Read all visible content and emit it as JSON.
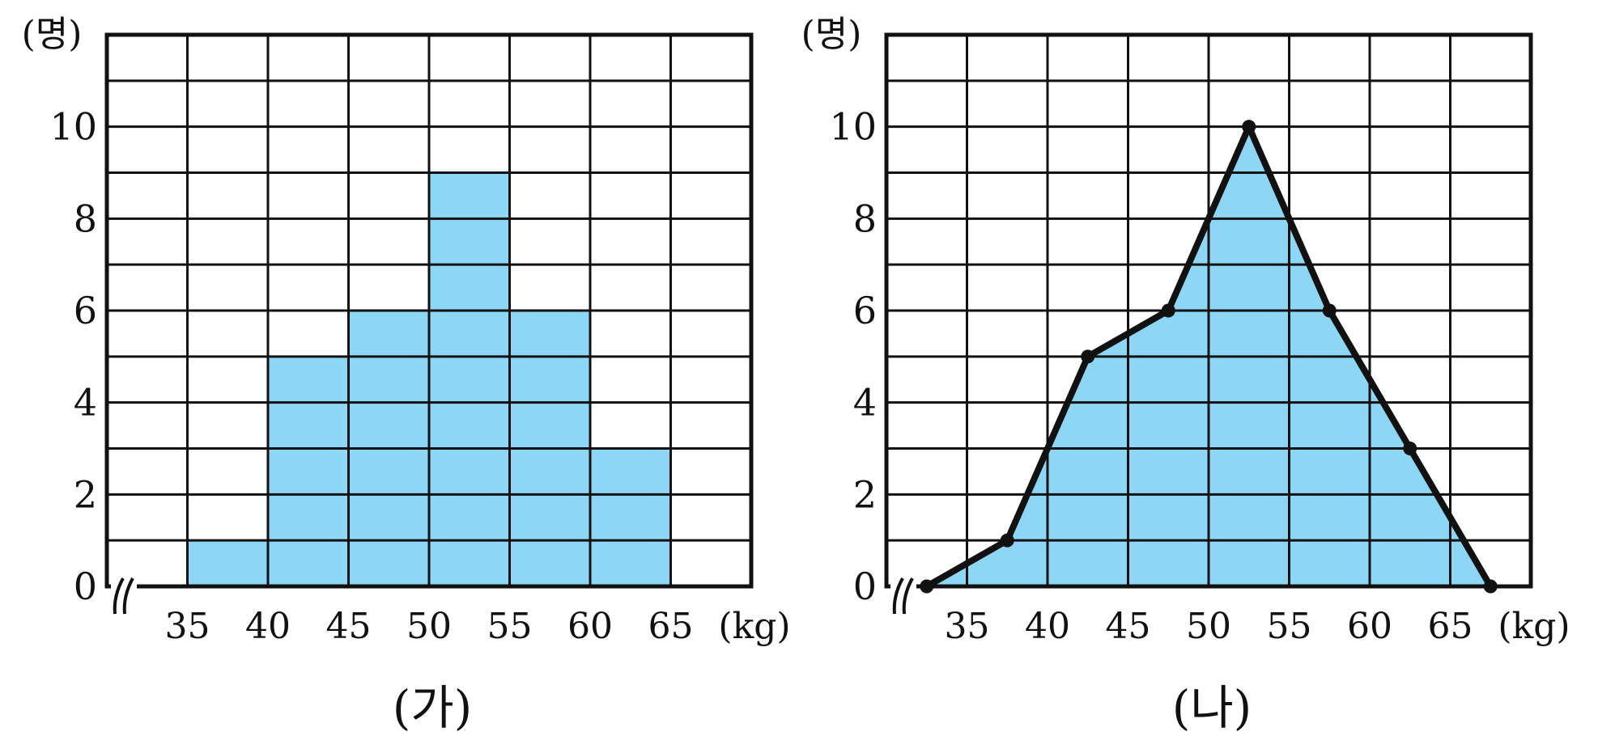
{
  "colors": {
    "fill": "#8dd6f5",
    "line": "#111111",
    "background": "#ffffff"
  },
  "chart_data": [
    {
      "type": "bar",
      "subtype": "histogram",
      "caption": "(가)",
      "ylabel": "(명)",
      "xlabel": "(kg)",
      "x_ticks": [
        "35",
        "40",
        "45",
        "50",
        "55",
        "60",
        "65"
      ],
      "y_ticks": [
        "0",
        "2",
        "4",
        "6",
        "8",
        "10"
      ],
      "ylim": [
        0,
        12
      ],
      "bins": [
        [
          30,
          35
        ],
        [
          35,
          40
        ],
        [
          40,
          45
        ],
        [
          45,
          50
        ],
        [
          50,
          55
        ],
        [
          55,
          60
        ],
        [
          60,
          65
        ],
        [
          65,
          70
        ]
      ],
      "values": [
        0,
        1,
        5,
        6,
        9,
        6,
        3,
        0
      ],
      "axis_break": true,
      "grid": true
    },
    {
      "type": "area",
      "subtype": "frequency-polygon",
      "caption": "(나)",
      "ylabel": "(명)",
      "xlabel": "(kg)",
      "x_ticks": [
        "35",
        "40",
        "45",
        "50",
        "55",
        "60",
        "65"
      ],
      "y_ticks": [
        "0",
        "2",
        "4",
        "6",
        "8",
        "10"
      ],
      "ylim": [
        0,
        12
      ],
      "x": [
        32.5,
        37.5,
        42.5,
        47.5,
        52.5,
        57.5,
        62.5,
        67.5
      ],
      "values": [
        0,
        1,
        5,
        6,
        10,
        6,
        3,
        0
      ],
      "axis_break": true,
      "grid": true
    }
  ]
}
